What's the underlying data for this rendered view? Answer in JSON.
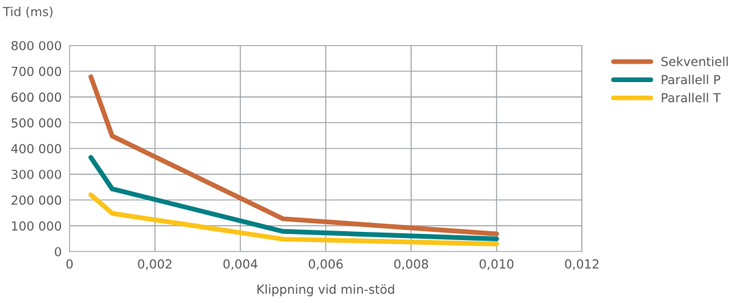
{
  "chart_data": {
    "type": "line",
    "ylabel": "Tid (ms)",
    "xlabel": "Klippning vid min-stöd",
    "x": [
      0.0005,
      0.001,
      0.005,
      0.01
    ],
    "series": [
      {
        "name": "Sekventiell",
        "color": "#c96a3a",
        "values": [
          678000,
          448000,
          127000,
          68000
        ]
      },
      {
        "name": "Parallell P",
        "color": "#007f83",
        "values": [
          365000,
          243000,
          78000,
          49000
        ]
      },
      {
        "name": "Parallell T",
        "color": "#fcc419",
        "values": [
          220000,
          148000,
          48000,
          29000
        ]
      }
    ],
    "xlim": [
      0,
      0.012
    ],
    "xticks": [
      0,
      {
        "value": 0.002,
        "label": "0,002"
      },
      {
        "value": 0.004,
        "label": "0,004"
      },
      {
        "value": 0.006,
        "label": "0,006"
      },
      {
        "value": 0.008,
        "label": "0,008"
      },
      {
        "value": 0.01,
        "label": "0,010"
      },
      {
        "value": 0.012,
        "label": "0,012"
      }
    ],
    "ylim": [
      0,
      800000
    ],
    "yticks": [
      0,
      {
        "value": 100000,
        "label": "100 000"
      },
      {
        "value": 200000,
        "label": "200 000"
      },
      {
        "value": 300000,
        "label": "300 000"
      },
      {
        "value": 400000,
        "label": "400 000"
      },
      {
        "value": 500000,
        "label": "500 000"
      },
      {
        "value": 600000,
        "label": "600 000"
      },
      {
        "value": 700000,
        "label": "700 000"
      },
      {
        "value": 800000,
        "label": "800 000"
      }
    ],
    "grid": true,
    "legend": "right",
    "line_style": "solid",
    "marker": "none"
  }
}
